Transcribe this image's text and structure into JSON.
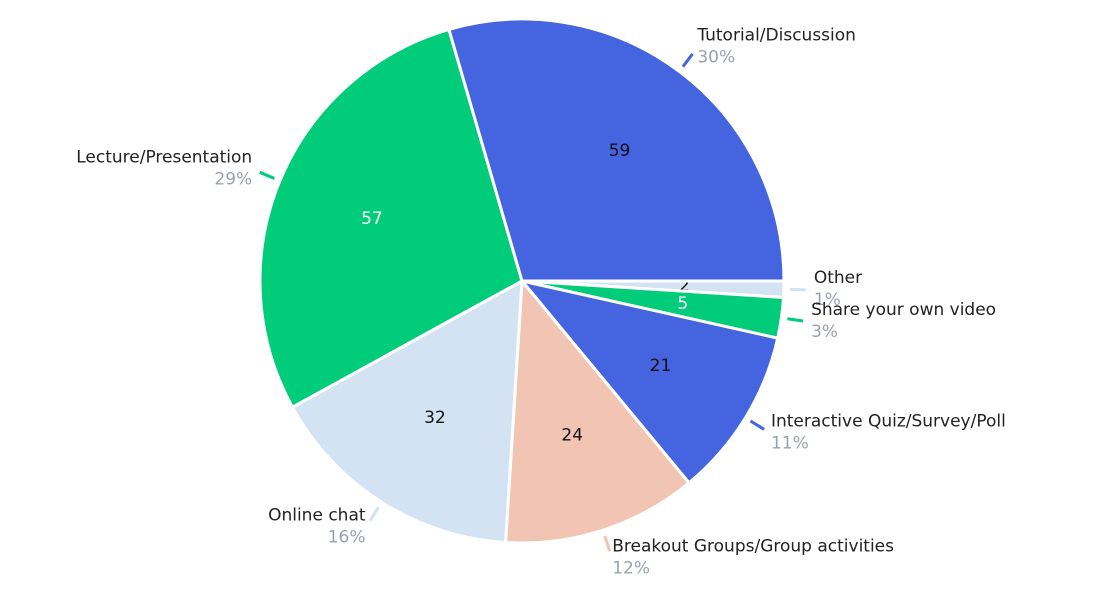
{
  "chart_data": {
    "type": "pie",
    "categories": [
      "Other",
      "Share your own video",
      "Interactive Quiz/Survey/Poll",
      "Breakout Groups/Group activities",
      "Online chat",
      "Lecture/Presentation",
      "Tutorial/Discussion"
    ],
    "values": [
      2,
      5,
      21,
      24,
      32,
      57,
      59
    ],
    "percent_labels": [
      "1%",
      "3%",
      "11%",
      "12%",
      "16%",
      "29%",
      "30%"
    ],
    "colors": [
      "#d3e3f3",
      "#00cc7a",
      "#4464e0",
      "#f2c4b4",
      "#d3e3f3",
      "#00cc7a",
      "#4464e0"
    ]
  }
}
